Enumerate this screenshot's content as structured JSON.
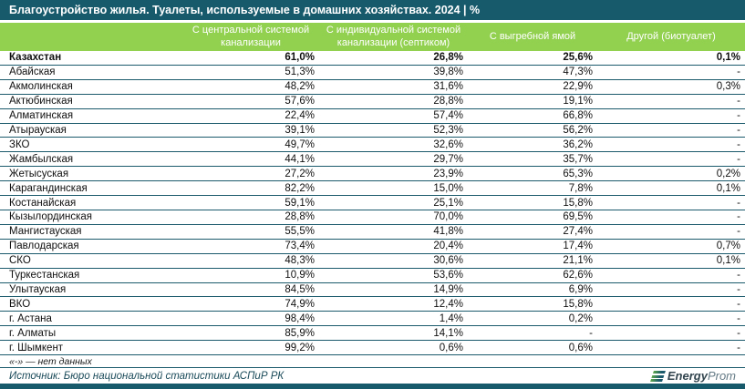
{
  "chart_data": {
    "type": "table",
    "title": "Благоустройство жилья. Туалеты, используемые в домашних хозяйствах. 2024 | %",
    "columns": [
      "С центральной системой канализации",
      "С индивидуальной системой канализации (септиком)",
      "С выгребной ямой",
      "Другой (биотуалет)"
    ],
    "rows": [
      {
        "region": "Казахстан",
        "values": [
          "61,0%",
          "26,8%",
          "25,6%",
          "0,1%"
        ],
        "bold": true
      },
      {
        "region": "Абайская",
        "values": [
          "51,3%",
          "39,8%",
          "47,3%",
          "-"
        ]
      },
      {
        "region": "Акмолинская",
        "values": [
          "48,2%",
          "31,6%",
          "22,9%",
          "0,3%"
        ]
      },
      {
        "region": "Актюбинская",
        "values": [
          "57,6%",
          "28,8%",
          "19,1%",
          "-"
        ]
      },
      {
        "region": "Алматинская",
        "values": [
          "22,4%",
          "57,4%",
          "66,8%",
          "-"
        ]
      },
      {
        "region": "Атырауская",
        "values": [
          "39,1%",
          "52,3%",
          "56,2%",
          "-"
        ]
      },
      {
        "region": "ЗКО",
        "values": [
          "49,7%",
          "32,6%",
          "36,2%",
          "-"
        ]
      },
      {
        "region": "Жамбылская",
        "values": [
          "44,1%",
          "29,7%",
          "35,7%",
          "-"
        ]
      },
      {
        "region": "Жетысуская",
        "values": [
          "27,2%",
          "23,9%",
          "65,3%",
          "0,2%"
        ]
      },
      {
        "region": "Карагандинская",
        "values": [
          "82,2%",
          "15,0%",
          "7,8%",
          "0,1%"
        ]
      },
      {
        "region": "Костанайская",
        "values": [
          "59,1%",
          "25,1%",
          "15,8%",
          "-"
        ]
      },
      {
        "region": "Кызылординская",
        "values": [
          "28,8%",
          "70,0%",
          "69,5%",
          "-"
        ]
      },
      {
        "region": "Мангистауская",
        "values": [
          "55,5%",
          "41,8%",
          "27,4%",
          "-"
        ]
      },
      {
        "region": "Павлодарская",
        "values": [
          "73,4%",
          "20,4%",
          "17,4%",
          "0,7%"
        ]
      },
      {
        "region": "СКО",
        "values": [
          "48,3%",
          "30,6%",
          "21,1%",
          "0,1%"
        ]
      },
      {
        "region": "Туркестанская",
        "values": [
          "10,9%",
          "53,6%",
          "62,6%",
          "-"
        ]
      },
      {
        "region": "Улытауская",
        "values": [
          "84,5%",
          "14,9%",
          "6,9%",
          "-"
        ]
      },
      {
        "region": "ВКО",
        "values": [
          "74,9%",
          "12,4%",
          "15,8%",
          "-"
        ]
      },
      {
        "region": "г. Астана",
        "values": [
          "98,4%",
          "1,4%",
          "0,2%",
          "-"
        ]
      },
      {
        "region": "г. Алматы",
        "values": [
          "85,9%",
          "14,1%",
          "-",
          "-"
        ]
      },
      {
        "region": "г. Шымкент",
        "values": [
          "99,2%",
          "0,6%",
          "0,6%",
          "-"
        ]
      }
    ],
    "footnote": "«-» — нет данных",
    "source": "Источник: Бюро национальной статистики АСПиР РК",
    "layout_hints": {
      "grid": "horizontal row separators",
      "value_alignment": "right"
    }
  },
  "logo": {
    "bold": "Energy",
    "light": "Prom"
  },
  "colors": {
    "title_bar": "#175A6C",
    "header_bg": "#92D050",
    "row_line": "#1B5A6C",
    "source_text": "#1B4B5A"
  }
}
